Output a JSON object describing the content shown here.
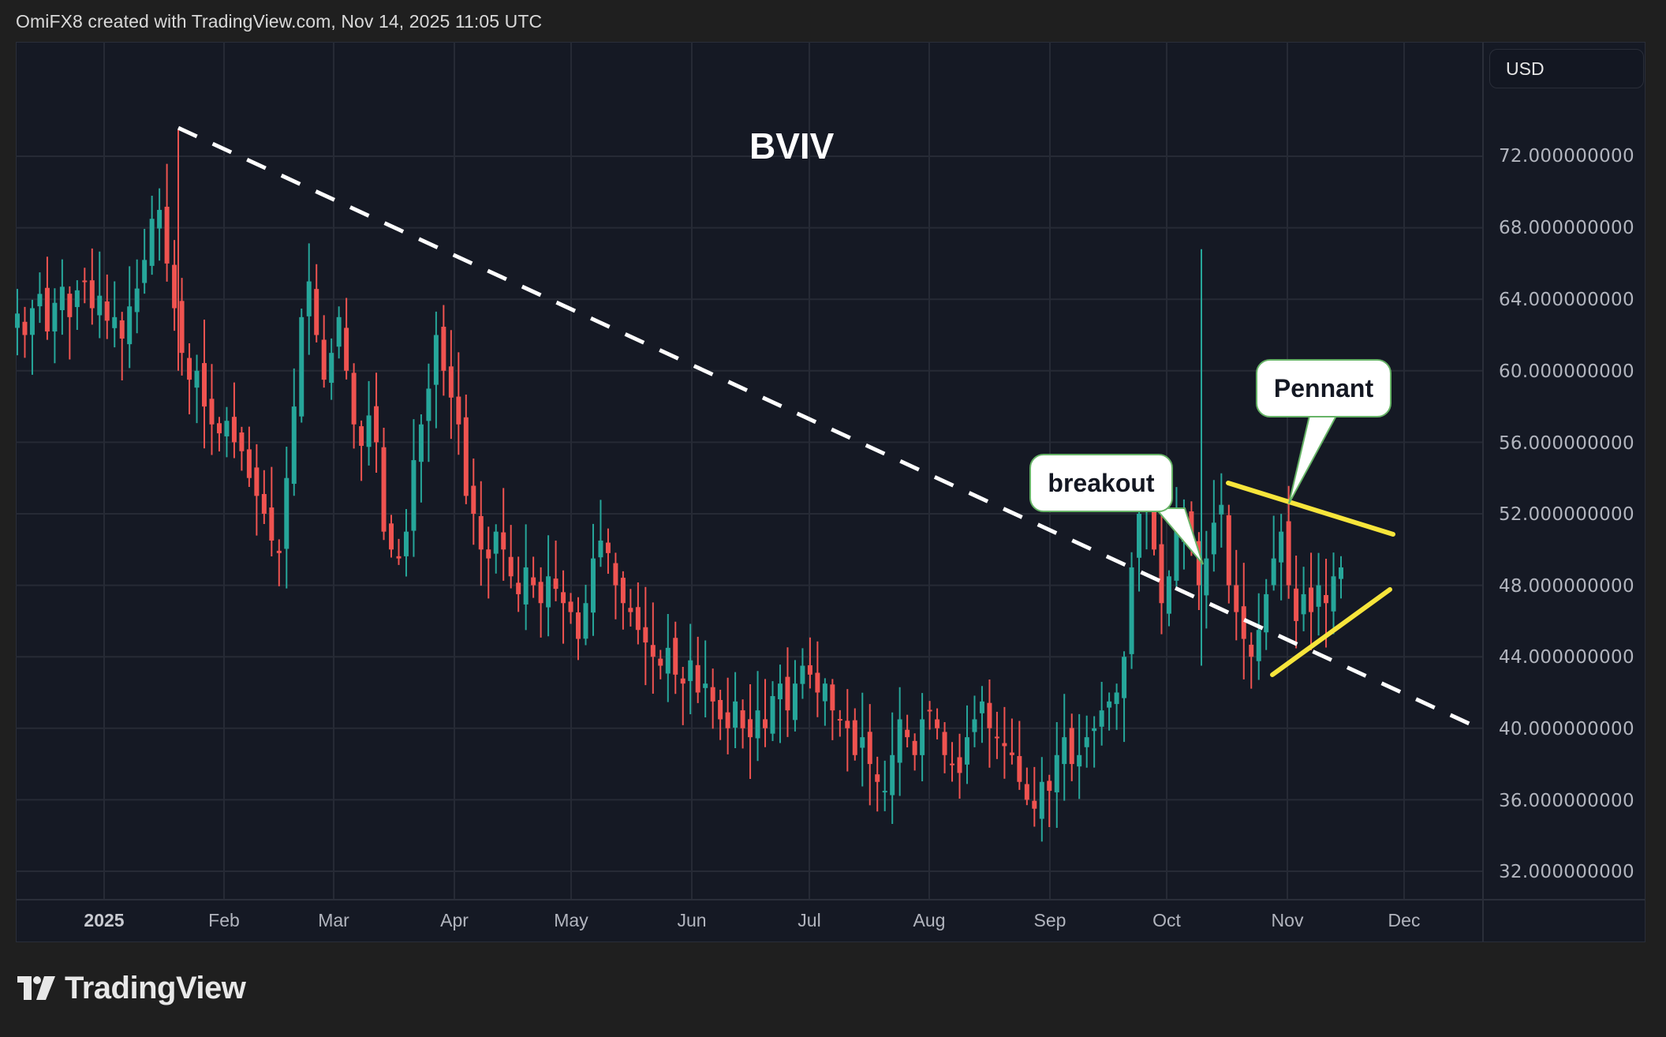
{
  "header": {
    "credit": "OmiFX8 created with TradingView.com, Nov 14, 2025 11:05 UTC"
  },
  "chart": {
    "symbol": "BVIV",
    "currency": "USD",
    "callouts": {
      "breakout": "breakout",
      "pennant": "Pennant"
    },
    "colors": {
      "up": "#26a69a",
      "down": "#ef5350",
      "background": "#151924",
      "grid": "#262a35",
      "trendline": "#ffffff",
      "pennant": "#f7e53b",
      "callout_border": "#66b366"
    }
  },
  "price_axis": {
    "labels": [
      "72.000000000",
      "68.000000000",
      "64.000000000",
      "60.000000000",
      "56.000000000",
      "52.000000000",
      "48.000000000",
      "44.000000000",
      "40.000000000",
      "36.000000000",
      "32.000000000"
    ]
  },
  "time_axis": {
    "labels": [
      "2025",
      "Feb",
      "Mar",
      "Apr",
      "May",
      "Jun",
      "Jul",
      "Aug",
      "Sep",
      "Oct",
      "Nov",
      "Dec"
    ]
  },
  "footer": {
    "brand": "TradingView"
  },
  "chart_data": {
    "type": "candlestick",
    "title": "BVIV",
    "xlabel": "",
    "ylabel": "USD",
    "ylim": [
      31,
      78
    ],
    "grid": true,
    "y_ticks": [
      72,
      68,
      64,
      60,
      56,
      52,
      48,
      44,
      40,
      36,
      32
    ],
    "x_ticks": [
      "2025",
      "Feb",
      "Mar",
      "Apr",
      "May",
      "Jun",
      "Jul",
      "Aug",
      "Sep",
      "Oct",
      "Nov",
      "Dec"
    ],
    "annotations": [
      {
        "type": "dashed-trendline",
        "from": {
          "date": "2025-01-21",
          "value": 73.5
        },
        "to": {
          "date": "2025-12-18",
          "value": 40.0
        },
        "color": "#ffffff"
      },
      {
        "type": "pennant-upper",
        "from": {
          "date": "2025-10-16",
          "value": 53.8
        },
        "to": {
          "date": "2025-11-27",
          "value": 50.8
        },
        "color": "#f7e53b"
      },
      {
        "type": "pennant-lower",
        "from": {
          "date": "2025-10-28",
          "value": 43.0
        },
        "to": {
          "date": "2025-11-26",
          "value": 47.8
        },
        "color": "#f7e53b"
      },
      {
        "type": "callout",
        "text": "breakout",
        "anchor": {
          "date": "2025-10-11",
          "value": 49.0
        }
      },
      {
        "type": "callout",
        "text": "Pennant",
        "anchor": {
          "date": "2025-11-01",
          "value": 52.7
        }
      }
    ],
    "series": [
      {
        "name": "BVIV daily (approx. close)",
        "values": [
          63.2,
          62.0,
          63.5,
          64.3,
          62.2,
          63.8,
          64.7,
          63.0,
          64.5,
          65.0,
          63.5,
          64.2,
          62.8,
          63.0,
          61.8,
          63.6,
          64.6,
          66.2,
          68.5,
          69.0,
          66.0,
          63.5,
          61.0,
          59.5,
          60.0,
          58.0,
          57.0,
          56.5,
          57.2,
          56.0,
          55.5,
          54.0,
          53.0,
          52.0,
          50.5,
          49.8,
          54.0,
          58.0,
          63.0,
          65.0,
          62.0,
          59.5,
          61.0,
          63.0,
          60.0,
          57.0,
          55.8,
          57.5,
          56.0,
          51.0,
          50.0,
          49.5,
          51.0,
          55.0,
          57.0,
          59.0,
          62.0,
          60.0,
          58.5,
          57.0,
          53.0,
          52.0,
          50.0,
          49.5,
          51.0,
          50.0,
          48.5,
          47.5,
          49.0,
          48.0,
          47.0,
          48.5,
          47.8,
          47.0,
          46.5,
          45.0,
          47.0,
          49.5,
          50.5,
          49.8,
          48.0,
          47.0,
          46.5,
          45.5,
          44.8,
          44.0,
          43.5,
          44.5,
          43.0,
          42.5,
          43.8,
          42.0,
          42.5,
          41.5,
          40.5,
          40.0,
          41.5,
          40.0,
          39.5,
          41.0,
          40.0,
          41.8,
          42.5,
          41.0,
          42.5,
          43.5,
          43.0,
          42.0,
          42.5,
          41.0,
          40.5,
          40.0,
          38.5,
          39.5,
          38.0,
          37.0,
          36.5,
          38.5,
          40.5,
          39.5,
          38.5,
          40.5,
          41.0,
          40.0,
          38.5,
          38.0,
          37.5,
          39.5,
          40.5,
          41.5,
          40.0,
          39.5,
          39.0,
          38.5,
          37.0,
          36.0,
          35.5,
          37.0,
          36.5,
          38.5,
          39.5,
          38.0,
          38.5,
          39.5,
          40.0,
          41.0,
          41.5,
          42.0,
          44.0,
          49.0,
          52.0,
          53.5,
          50.0,
          47.0,
          48.5,
          51.0,
          52.0,
          50.5,
          48.0,
          49.5,
          51.5,
          52.5,
          48.0,
          46.5,
          45.0,
          44.0,
          45.5,
          47.5,
          49.5,
          51.0,
          48.0,
          46.0,
          47.5,
          46.5,
          48.0,
          47.0,
          48.5,
          49.0
        ]
      }
    ]
  }
}
